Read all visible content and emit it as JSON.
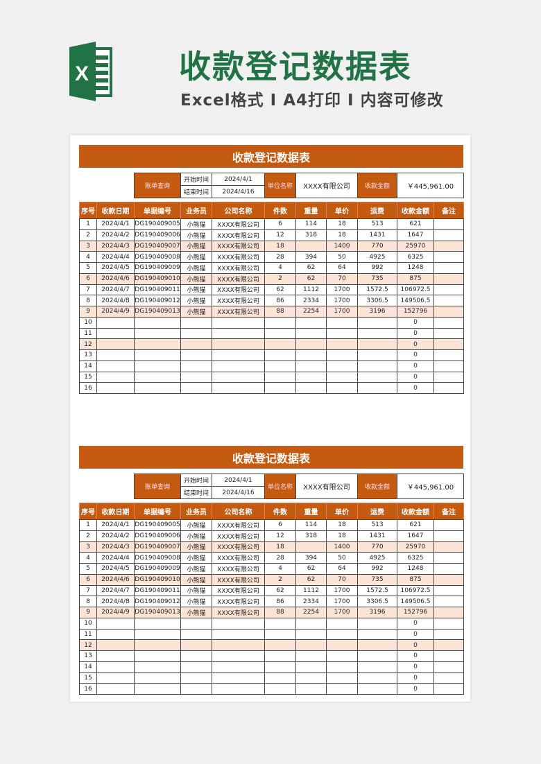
{
  "banner": {
    "title": "收款登记数据表",
    "subtitle": "Excel格式 I A4打印 I 内容可修改",
    "logo_letter": "X",
    "logo_color": "#217346"
  },
  "sheet": {
    "title": "收款登记数据表",
    "info": {
      "query_label": "账单查询",
      "start_label": "开始时间",
      "start_value": "2024/4/1",
      "end_label": "结束时间",
      "end_value": "2024/4/16",
      "company_label": "单位名称",
      "company_value": "XXXX有限公司",
      "amount_label": "收款金额",
      "amount_value": "￥445,961.00"
    },
    "columns": [
      "序号",
      "收款日期",
      "单据编号",
      "业务员",
      "公司名称",
      "件数",
      "重量",
      "单价",
      "运费",
      "收款金额",
      "备注"
    ],
    "rows": [
      [
        "1",
        "2024/4/1",
        "DG190409005",
        "小熊猫",
        "XXXX有限公司",
        "6",
        "114",
        "18",
        "513",
        "621",
        ""
      ],
      [
        "2",
        "2024/4/2",
        "DG190409006",
        "小熊猫",
        "XXXX有限公司",
        "12",
        "318",
        "18",
        "1431",
        "1647",
        ""
      ],
      [
        "3",
        "2024/4/3",
        "DG190409007",
        "小熊猫",
        "XXXX有限公司",
        "18",
        "",
        "1400",
        "770",
        "25970",
        ""
      ],
      [
        "4",
        "2024/4/4",
        "DG190409008",
        "小熊猫",
        "XXXX有限公司",
        "28",
        "394",
        "50",
        "4925",
        "6325",
        ""
      ],
      [
        "5",
        "2024/4/5",
        "DG190409009",
        "小熊猫",
        "XXXX有限公司",
        "4",
        "62",
        "64",
        "992",
        "1248",
        ""
      ],
      [
        "6",
        "2024/4/6",
        "DG190409010",
        "小熊猫",
        "XXXX有限公司",
        "2",
        "62",
        "70",
        "735",
        "875",
        ""
      ],
      [
        "7",
        "2024/4/7",
        "DG190409011",
        "小熊猫",
        "XXXX有限公司",
        "62",
        "1112",
        "1700",
        "1572.5",
        "106972.5",
        ""
      ],
      [
        "8",
        "2024/4/8",
        "DG190409012",
        "小熊猫",
        "XXXX有限公司",
        "86",
        "2334",
        "1700",
        "3306.5",
        "149506.5",
        ""
      ],
      [
        "9",
        "2024/4/9",
        "DG190409013",
        "小熊猫",
        "XXXX有限公司",
        "88",
        "2254",
        "1700",
        "3196",
        "152796",
        ""
      ],
      [
        "10",
        "",
        "",
        "",
        "",
        "",
        "",
        "",
        "",
        "0",
        ""
      ],
      [
        "11",
        "",
        "",
        "",
        "",
        "",
        "",
        "",
        "",
        "0",
        ""
      ],
      [
        "12",
        "",
        "",
        "",
        "",
        "",
        "",
        "",
        "",
        "0",
        ""
      ],
      [
        "13",
        "",
        "",
        "",
        "",
        "",
        "",
        "",
        "",
        "0",
        ""
      ],
      [
        "14",
        "",
        "",
        "",
        "",
        "",
        "",
        "",
        "",
        "0",
        ""
      ],
      [
        "15",
        "",
        "",
        "",
        "",
        "",
        "",
        "",
        "",
        "0",
        ""
      ],
      [
        "16",
        "",
        "",
        "",
        "",
        "",
        "",
        "",
        "",
        "0",
        ""
      ]
    ],
    "shaded_rows": [
      3,
      6,
      9,
      12
    ],
    "accent": "#c55a11",
    "shade": "#fce4d6"
  }
}
